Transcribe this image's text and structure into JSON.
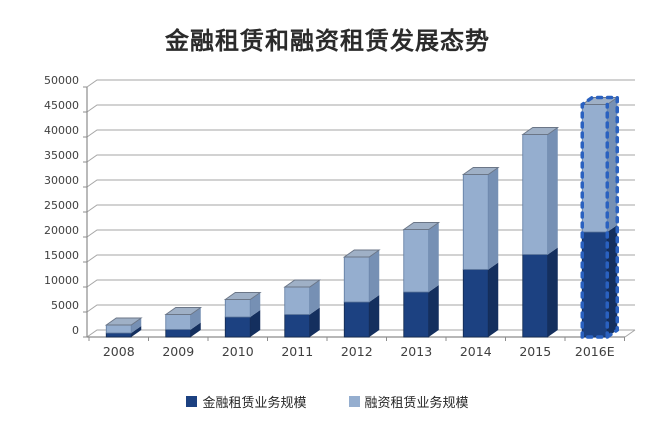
{
  "title": "金融租赁和融资租赁发展态势",
  "colors": {
    "background": "#ffffff",
    "title_text": "#2b2b2b",
    "axis_line": "#8c8c8c",
    "gridline": "#a6a6a6",
    "tick_label": "#3f3f3f",
    "series_dark_front": "#1c4181",
    "series_dark_side": "#142f5e",
    "series_dark_edge": "#12294e",
    "series_light_front": "#95aecf",
    "series_light_side": "#7690b4",
    "series_light_edge": "#5f7aa0",
    "bar_top_face": "#9fb0c6",
    "bar_top_edge": "#6b7687",
    "forecast_dash": "#2a61c0"
  },
  "chart_data": {
    "type": "bar",
    "stacked": true,
    "grid": true,
    "legend_position": "bottom",
    "title": "金融租赁和融资租赁发展态势",
    "xlabel": "",
    "ylabel": "",
    "ylim": [
      0,
      50000
    ],
    "ytick_step": 5000,
    "yticks": [
      "0",
      "5000",
      "10000",
      "15000",
      "20000",
      "25000",
      "30000",
      "35000",
      "40000",
      "45000",
      "50000"
    ],
    "ytick_values": [
      0,
      5000,
      10000,
      15000,
      20000,
      25000,
      30000,
      35000,
      40000,
      45000,
      50000
    ],
    "categories": [
      "2008",
      "2009",
      "2010",
      "2011",
      "2012",
      "2013",
      "2014",
      "2015",
      "2016E"
    ],
    "forecast_category": "2016E",
    "series": [
      {
        "name": "金融租赁业务规模",
        "color": "#1c4181",
        "values": [
          800,
          1500,
          4000,
          4500,
          7000,
          9000,
          13500,
          16500,
          21000
        ]
      },
      {
        "name": "融资租赁业务规模",
        "color": "#95aecf",
        "values": [
          1600,
          3000,
          3500,
          5500,
          9000,
          12500,
          19000,
          24000,
          25500
        ]
      }
    ],
    "totals": [
      2400,
      4500,
      7500,
      10000,
      16000,
      21500,
      32500,
      40500,
      46500
    ]
  },
  "legend": {
    "items": [
      {
        "label": "金融租赁业务规模"
      },
      {
        "label": "融资租赁业务规模"
      }
    ]
  }
}
